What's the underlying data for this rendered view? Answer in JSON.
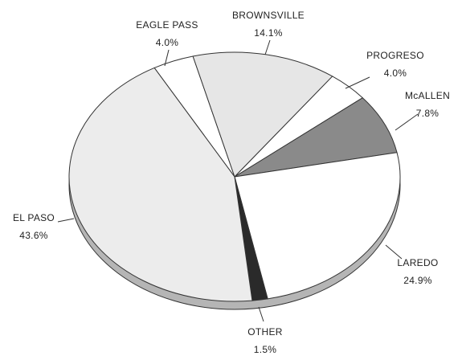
{
  "chart_data": {
    "type": "pie",
    "categories": [
      "EAGLE PASS",
      "BROWNSVILLE",
      "PROGRESO",
      "McALLEN",
      "LAREDO",
      "OTHER",
      "EL PASO"
    ],
    "values": [
      4.0,
      14.1,
      4.0,
      7.8,
      24.9,
      1.5,
      43.6
    ],
    "value_labels": [
      "4.0%",
      "14.1%",
      "4.0%",
      "7.8%",
      "24.9%",
      "1.5%",
      "43.6%"
    ],
    "colors": [
      "#ffffff",
      "#e6e6e6",
      "#ffffff",
      "#8a8a8a",
      "#ffffff",
      "#2a2a2a",
      "#ececec"
    ]
  }
}
